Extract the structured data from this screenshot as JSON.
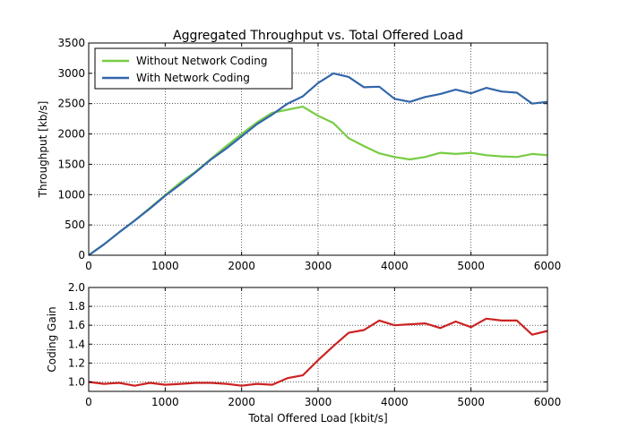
{
  "chart_data": [
    {
      "type": "line",
      "title": "Aggregated Throughput vs. Total Offered Load",
      "xlabel": "",
      "ylabel": "Throughput [kb/s]",
      "xlim": [
        0,
        6000
      ],
      "ylim": [
        0,
        3500
      ],
      "xticks": [
        0,
        1000,
        2000,
        3000,
        4000,
        5000,
        6000
      ],
      "yticks": [
        0,
        500,
        1000,
        1500,
        2000,
        2500,
        3000,
        3500
      ],
      "grid": true,
      "legend": "top-left",
      "series": [
        {
          "name": "Without Network Coding",
          "color": "#77cc44",
          "x": [
            0,
            200,
            400,
            600,
            800,
            1000,
            1200,
            1400,
            1600,
            1800,
            2000,
            2200,
            2400,
            2600,
            2800,
            3000,
            3200,
            3400,
            3600,
            3800,
            4000,
            4200,
            4400,
            4600,
            4800,
            5000,
            5200,
            5400,
            5600,
            5800,
            6000
          ],
          "y": [
            0,
            180,
            380,
            570,
            780,
            990,
            1200,
            1380,
            1590,
            1800,
            2000,
            2190,
            2350,
            2400,
            2450,
            2300,
            2180,
            1930,
            1800,
            1680,
            1620,
            1580,
            1620,
            1690,
            1670,
            1690,
            1650,
            1630,
            1620,
            1670,
            1650
          ]
        },
        {
          "name": "With Network Coding",
          "color": "#3366aa",
          "x": [
            0,
            200,
            400,
            600,
            800,
            1000,
            1200,
            1400,
            1600,
            1800,
            2000,
            2200,
            2400,
            2600,
            2800,
            3000,
            3200,
            3400,
            3600,
            3800,
            4000,
            4200,
            4400,
            4600,
            4800,
            5000,
            5200,
            5400,
            5600,
            5800,
            6000
          ],
          "y": [
            0,
            180,
            380,
            570,
            770,
            980,
            1170,
            1370,
            1580,
            1760,
            1960,
            2160,
            2320,
            2500,
            2620,
            2840,
            3000,
            2940,
            2770,
            2780,
            2580,
            2530,
            2610,
            2660,
            2730,
            2670,
            2760,
            2700,
            2680,
            2500,
            2530
          ]
        }
      ]
    },
    {
      "type": "line",
      "title": "",
      "xlabel": "Total Offered Load [kbit/s]",
      "ylabel": "Coding Gain",
      "xlim": [
        0,
        6000
      ],
      "ylim": [
        0.9,
        2.0
      ],
      "xticks": [
        0,
        1000,
        2000,
        3000,
        4000,
        5000,
        6000
      ],
      "yticks": [
        1.0,
        1.2,
        1.4,
        1.6,
        1.8,
        2.0
      ],
      "grid": true,
      "series": [
        {
          "color": "#cc2222",
          "x": [
            0,
            200,
            400,
            600,
            800,
            1000,
            1200,
            1400,
            1600,
            1800,
            2000,
            2200,
            2400,
            2600,
            2800,
            3000,
            3200,
            3400,
            3600,
            3800,
            4000,
            4200,
            4400,
            4600,
            4800,
            5000,
            5200,
            5400,
            5600,
            5800,
            6000
          ],
          "y": [
            1.0,
            0.98,
            0.99,
            0.96,
            0.99,
            0.97,
            0.98,
            0.99,
            0.99,
            0.98,
            0.96,
            0.98,
            0.97,
            1.04,
            1.07,
            1.23,
            1.38,
            1.52,
            1.55,
            1.65,
            1.6,
            1.61,
            1.62,
            1.57,
            1.64,
            1.58,
            1.67,
            1.65,
            1.65,
            1.5,
            1.54
          ]
        }
      ]
    }
  ]
}
